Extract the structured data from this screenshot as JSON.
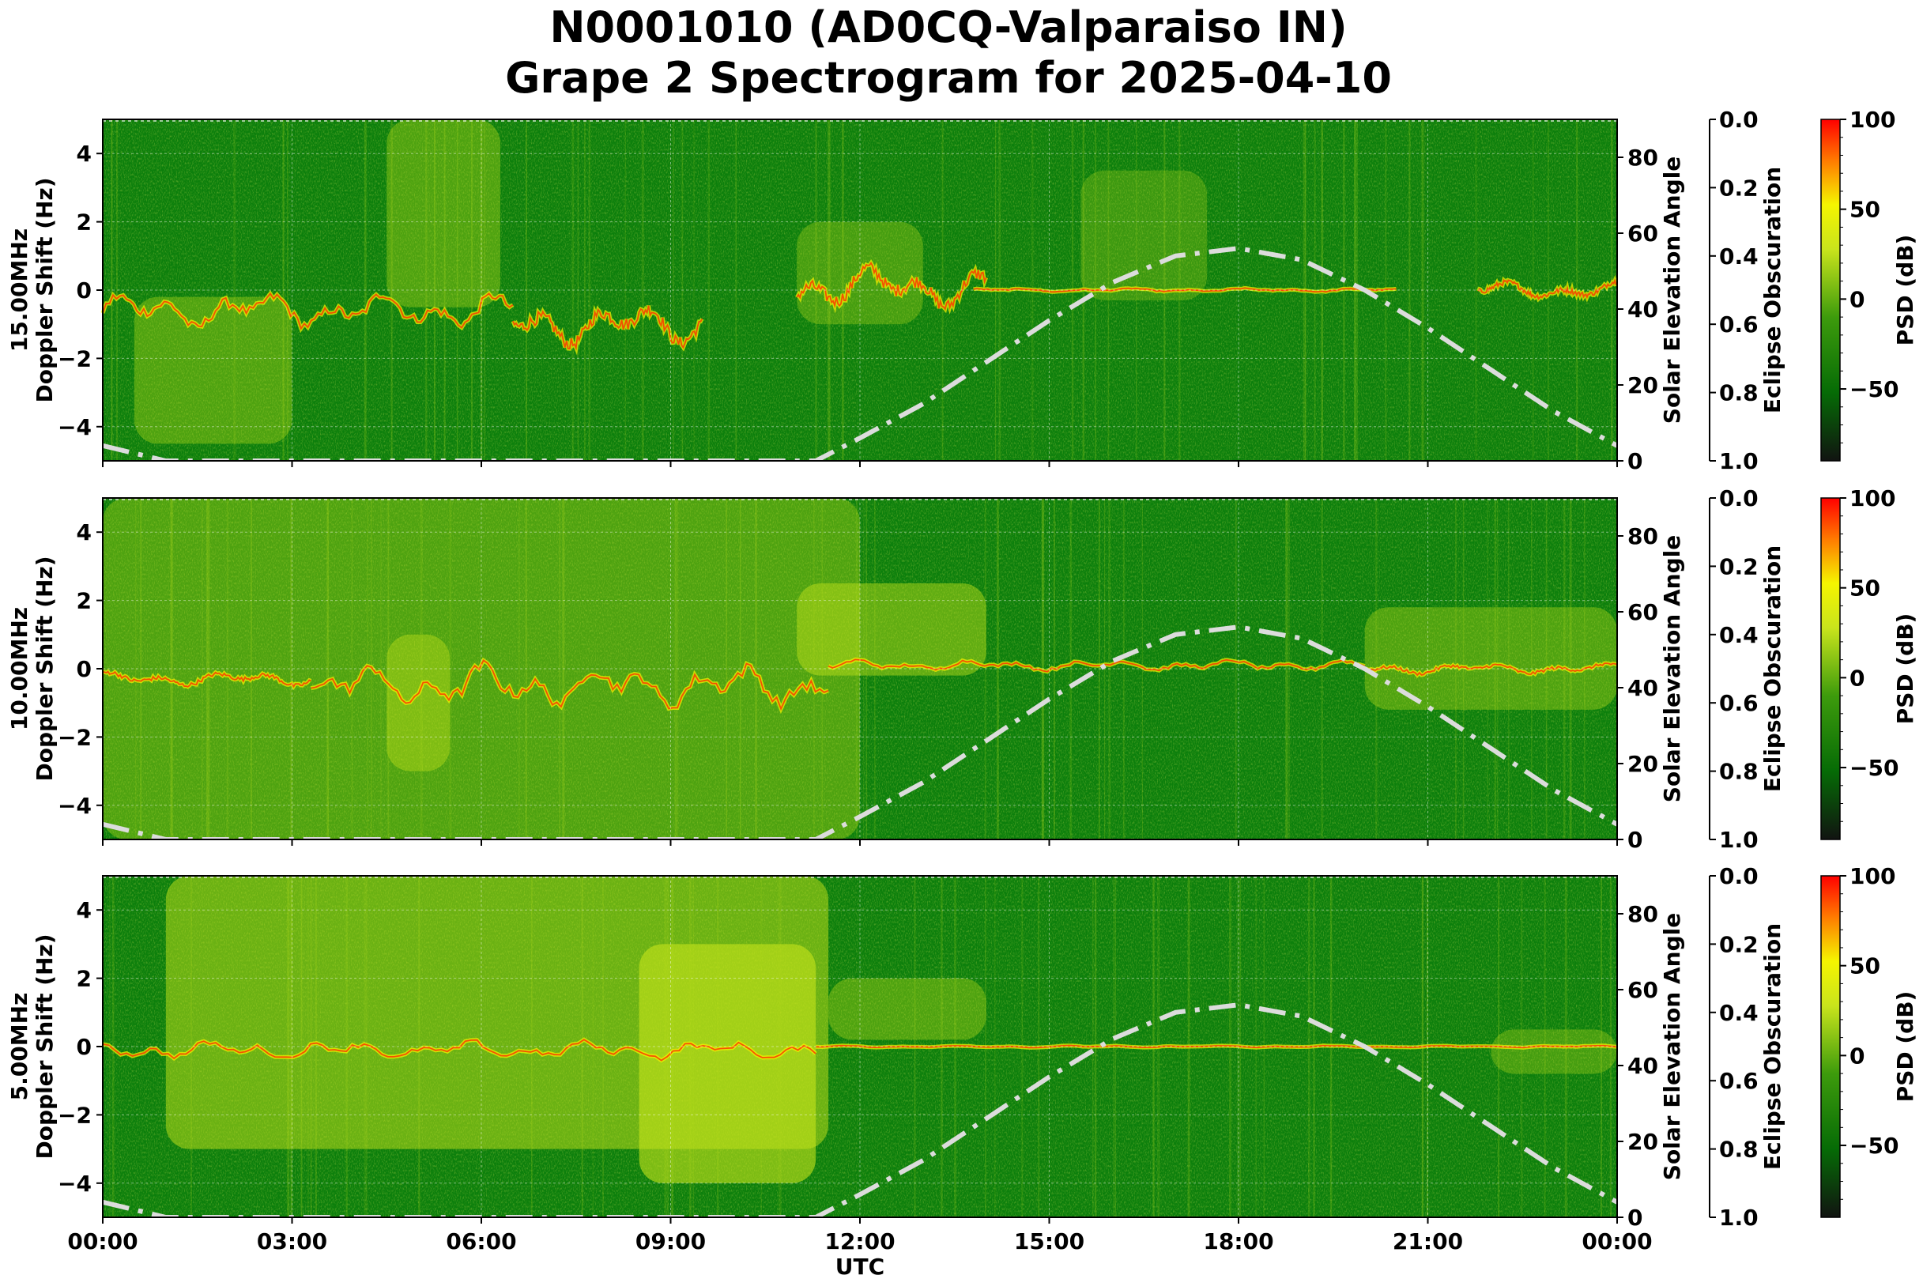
{
  "title_line1": "N0001010 (AD0CQ-Valparaiso IN)",
  "title_line2": "Grape 2 Spectrogram for 2025-04-10",
  "chart_data": {
    "type": "heatmap",
    "x_axis": {
      "label": "UTC",
      "range": [
        "00:00",
        "24:00"
      ],
      "tick_labels": [
        "00:00",
        "03:00",
        "06:00",
        "09:00",
        "12:00",
        "15:00",
        "18:00",
        "21:00",
        "00:00"
      ]
    },
    "left_axis": {
      "label": "Doppler Shift (Hz)",
      "range": [
        -5,
        5
      ],
      "ticks": [
        -4,
        -2,
        0,
        2,
        4
      ],
      "tick_labels": [
        "−4",
        "−2",
        "0",
        "2",
        "4"
      ]
    },
    "solar_axis": {
      "label": "Solar Elevation Angle",
      "range": [
        0,
        90
      ],
      "ticks": [
        0,
        20,
        40,
        60,
        80
      ],
      "tick_labels": [
        "0",
        "20",
        "40",
        "60",
        "80"
      ]
    },
    "eclipse_axis": {
      "label": "Eclipse Obscuration",
      "range": [
        0.0,
        1.0
      ],
      "ticks": [
        0.0,
        0.2,
        0.4,
        0.6,
        0.8,
        1.0
      ],
      "tick_labels": [
        "0.0",
        "0.2",
        "0.4",
        "0.6",
        "0.8",
        "1.0"
      ]
    },
    "colorbar": {
      "label": "PSD (dB)",
      "range": [
        -90,
        100
      ],
      "ticks": [
        100,
        50,
        0,
        -50
      ],
      "tick_labels": [
        "100",
        "50",
        "0",
        "−50"
      ],
      "colors": [
        "#111411",
        "#066b06",
        "#3d9b0c",
        "#c9e41c",
        "#f5f500",
        "#ff7a00",
        "#ff0000"
      ]
    },
    "grid": true,
    "panels": [
      {
        "name": "15.00MHz",
        "ylabel": "15.00MHz\nDoppler Shift (Hz)"
      },
      {
        "name": "10.00MHz",
        "ylabel": "10.00MHz\nDoppler Shift (Hz)"
      },
      {
        "name": "5.00MHz",
        "ylabel": "5.00MHz\nDoppler Shift (Hz)"
      }
    ],
    "solar_elevation": {
      "line_style": "dash-dot",
      "color": "#dcdcdc",
      "x_hours": [
        0,
        1,
        2,
        3,
        4,
        5,
        6,
        7,
        8,
        9,
        10,
        11,
        11.3,
        12,
        13,
        14,
        15,
        16,
        17,
        18,
        19,
        20,
        21,
        22,
        23,
        24
      ],
      "y_degrees": [
        4,
        0,
        0,
        0,
        0,
        0,
        0,
        0,
        0,
        0,
        0,
        0,
        0,
        6,
        15,
        26,
        37,
        47,
        54,
        56,
        53,
        45,
        35,
        24,
        13,
        4
      ]
    }
  }
}
